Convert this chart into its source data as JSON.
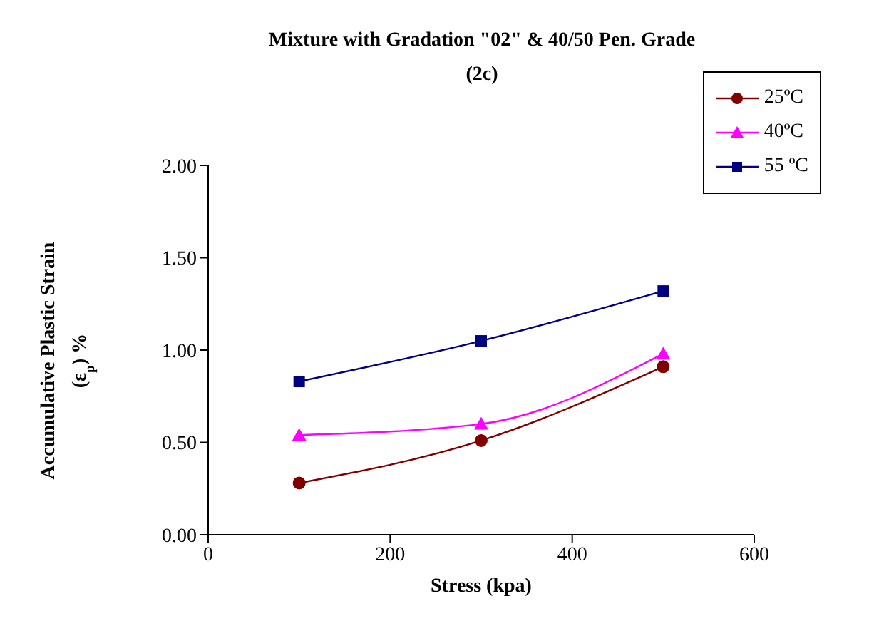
{
  "chart_data": {
    "type": "line",
    "title": "Mixture with Gradation \"02\" & 40/50 Pen. Grade\n(2c)",
    "xlabel": "Stress (kpa)",
    "ylabel": "Accumulative Plastic Strain\n(ε$_{p}$) %",
    "x": [
      100,
      300,
      500
    ],
    "series": [
      {
        "name": "25ºC",
        "color": "#800000",
        "marker": "circle",
        "values": [
          0.28,
          0.51,
          0.91
        ]
      },
      {
        "name": "40ºC",
        "color": "#ff00ff",
        "marker": "triangle",
        "values": [
          0.54,
          0.6,
          0.98
        ]
      },
      {
        "name": "55 ºC",
        "color": "#000080",
        "marker": "square",
        "values": [
          0.83,
          1.05,
          1.32
        ]
      }
    ],
    "xlim": [
      0,
      600
    ],
    "xticks": [
      0,
      200,
      400,
      600
    ],
    "ylim": [
      0,
      2
    ],
    "yticks": [
      {
        "value": 0,
        "label": "0.00"
      },
      {
        "value": 0.5,
        "label": "0.50"
      },
      {
        "value": 1,
        "label": "1.00"
      },
      {
        "value": 1.5,
        "label": "1.50"
      },
      {
        "value": 2,
        "label": "2.00"
      }
    ],
    "grid": false,
    "legend": "top right",
    "line_style": "solid"
  }
}
